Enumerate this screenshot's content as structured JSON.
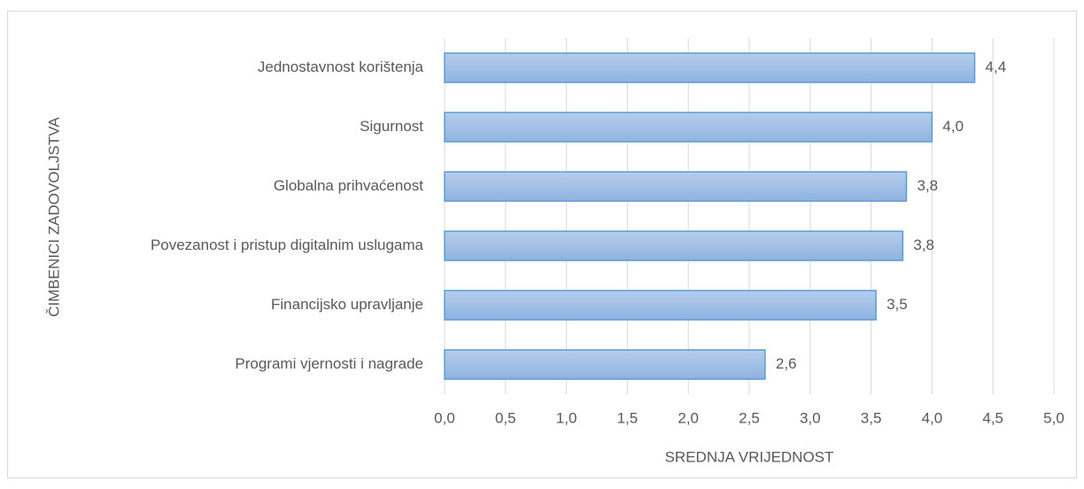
{
  "chart_data": {
    "type": "bar",
    "orientation": "horizontal",
    "x_label": "SREDNJA VRIJEDNOST",
    "y_label": "ČIMBENICI ZADOVOLJSTVA",
    "categories": [
      "Jednostavnost korištenja",
      "Sigurnost",
      "Globalna prihvaćenost",
      "Povezanost i pristup digitalnim uslugama",
      "Financijsko upravljanje",
      "Programi vjernosti i nagrade"
    ],
    "values": [
      4.35,
      4.0,
      3.79,
      3.76,
      3.54,
      2.63
    ],
    "value_labels": [
      "4,4",
      "4,0",
      "3,8",
      "3,8",
      "3,5",
      "2,6"
    ],
    "color": "#5b9bd5",
    "xlim": [
      0,
      5
    ],
    "xticks": [
      {
        "value": 0,
        "label": "0,0"
      },
      {
        "value": 0.5,
        "label": "0,5"
      },
      {
        "value": 1,
        "label": "1,0"
      },
      {
        "value": 1.5,
        "label": "1,5"
      },
      {
        "value": 2,
        "label": "2,0"
      },
      {
        "value": 2.5,
        "label": "2,5"
      },
      {
        "value": 3,
        "label": "3,0"
      },
      {
        "value": 3.5,
        "label": "3,5"
      },
      {
        "value": 4,
        "label": "4,0"
      },
      {
        "value": 4.5,
        "label": "4,5"
      },
      {
        "value": 5,
        "label": "5,0"
      }
    ],
    "grid": true
  }
}
